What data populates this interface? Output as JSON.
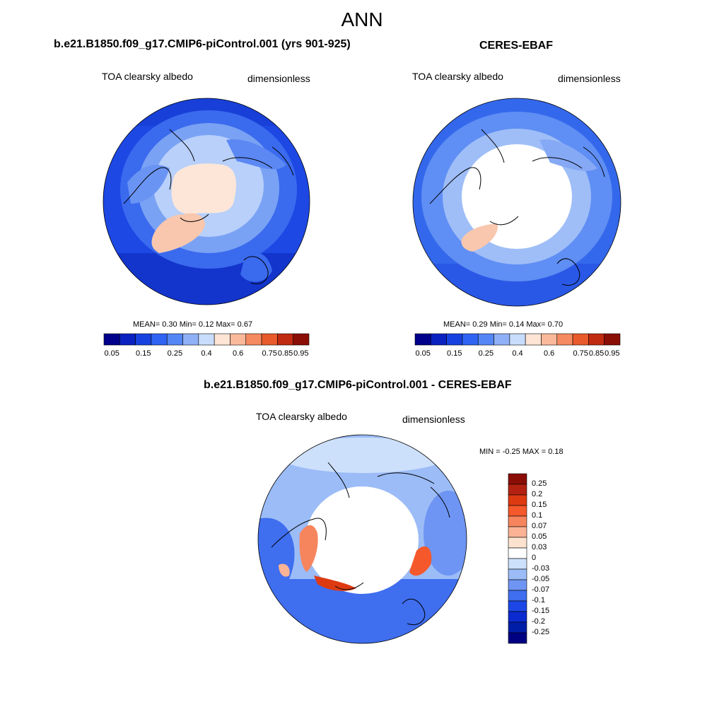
{
  "title": "ANN",
  "colors": {
    "ramp12": [
      "#00008b",
      "#0a22c0",
      "#1742e0",
      "#2f64f2",
      "#5586f5",
      "#8fb0f7",
      "#c8dcfb",
      "#fde4d4",
      "#fbb99b",
      "#f58a60",
      "#e85a2b",
      "#c02a10",
      "#8a0e06"
    ],
    "diff": [
      "#8a0e06",
      "#b32210",
      "#de3a12",
      "#f5582a",
      "#f6855e",
      "#fab394",
      "#fde3cf",
      "#ffffff",
      "#cde0fb",
      "#9bbcf7",
      "#6e95f3",
      "#3f6eef",
      "#1c47e6",
      "#0b2ad0",
      "#001da8",
      "#000083"
    ],
    "ocean_model": "#1d48e4",
    "ocean_obs": "#3468ec",
    "ice": "#fde6d8",
    "greenland": "#f8c7ae",
    "land_light": "#a6c3f6",
    "white": "#ffffff"
  },
  "panel1": {
    "title": "b.e21.B1850.f09_g17.CMIP6-piControl.001 (yrs 901-925)",
    "left_label": "TOA clearsky albedo",
    "right_label": "dimensionless",
    "stats": "MEAN=   0.30  Min=   0.12  Max=    0.67",
    "colorbar_ticks": [
      "0.05",
      "0.15",
      "0.25",
      "0.4",
      "0.6",
      "0.75",
      "0.85",
      "0.95"
    ]
  },
  "panel2": {
    "title": "CERES-EBAF",
    "left_label": "TOA clearsky albedo",
    "right_label": "dimensionless",
    "stats": "MEAN=   0.29  Min=   0.14  Max=    0.70",
    "colorbar_ticks": [
      "0.05",
      "0.15",
      "0.25",
      "0.4",
      "0.6",
      "0.75",
      "0.85",
      "0.95"
    ]
  },
  "panel3": {
    "title": "b.e21.B1850.f09_g17.CMIP6-piControl.001 - CERES-EBAF",
    "left_label": "TOA clearsky albedo",
    "right_label": "dimensionless",
    "stats": "MIN =  -0.25 MAX =   0.18",
    "colorbar_ticks": [
      "0.25",
      "0.2",
      "0.15",
      "0.1",
      "0.07",
      "0.05",
      "0.03",
      "0",
      "-0.03",
      "-0.05",
      "-0.07",
      "-0.1",
      "-0.15",
      "-0.2",
      "-0.25"
    ]
  }
}
